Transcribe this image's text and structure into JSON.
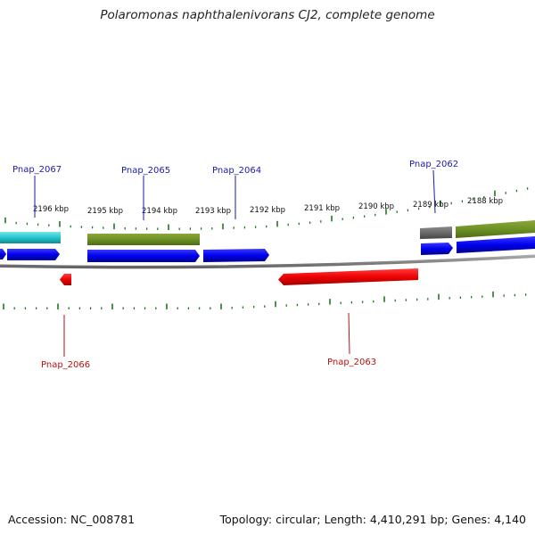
{
  "title": "Polaromonas naphthalenivorans CJ2, complete genome",
  "footer": {
    "accession": "Accession: NC_008781",
    "summary": "Topology: circular; Length: 4,410,291 bp; Genes: 4,140"
  },
  "colors": {
    "forward_cds": "#0a0aee",
    "reverse_cds": "#ee0a0a",
    "cog_olive": "#6b8e23",
    "cog_cyan": "#20c0c8",
    "cog_gray": "#666666",
    "backbone": "#8a8a8a",
    "tick": "#1e7a1e",
    "forward_label": "#1a1aaa",
    "reverse_label": "#bb1111"
  },
  "chart_data": {
    "type": "genome-map",
    "units": "kbp",
    "scale_labels": [
      "2196 kbp",
      "2195 kbp",
      "2194 kbp",
      "2193 kbp",
      "2192 kbp",
      "2191 kbp",
      "2190 kbp",
      "2189 kbp",
      "2188 kbp"
    ],
    "labeled_genes": [
      {
        "name": "Pnap_2067",
        "strand": "forward"
      },
      {
        "name": "Pnap_2065",
        "strand": "forward"
      },
      {
        "name": "Pnap_2064",
        "strand": "forward"
      },
      {
        "name": "Pnap_2062",
        "strand": "forward"
      },
      {
        "name": "Pnap_2066",
        "strand": "reverse"
      },
      {
        "name": "Pnap_2063",
        "strand": "reverse"
      }
    ]
  }
}
